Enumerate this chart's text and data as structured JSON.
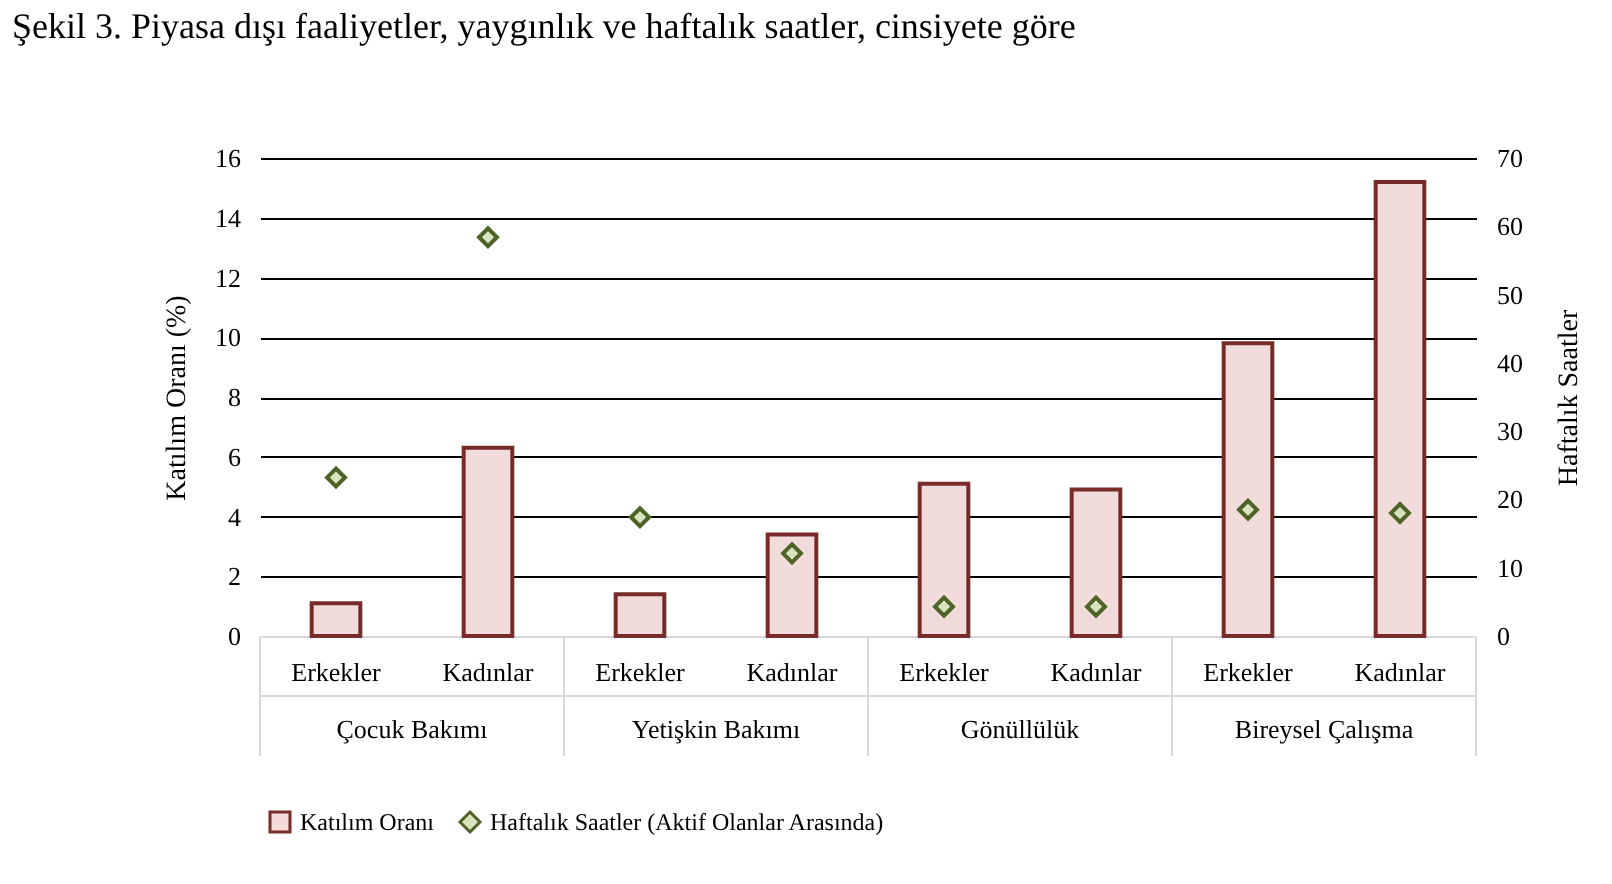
{
  "chart_data": {
    "type": "bar",
    "title": "Şekil 3. Piyasa dışı faaliyetler, yaygınlık ve haftalık saatler, cinsiyete göre",
    "categories": [
      "Erkekler",
      "Kadınlar",
      "Erkekler",
      "Kadınlar",
      "Erkekler",
      "Kadınlar",
      "Erkekler",
      "Kadınlar"
    ],
    "annotations": [
      "Çocuk Bakımı",
      "Yetişkin Bakımı",
      "Gönüllülük",
      "Bireysel Çalışma"
    ],
    "series": [
      {
        "name": "Katılım Oranı",
        "color": "#f2dcdb",
        "values": [
          1.1,
          6.3,
          1.4,
          3.4,
          5.1,
          4.9,
          9.8,
          15.2
        ]
      },
      {
        "name": "Haftalık Saatler (Aktif Olanlar Arasında)",
        "type": "scatter",
        "axis": "y2",
        "marker": "diamond",
        "color": "#d7e4bd",
        "values": [
          23.2,
          58.4,
          17.4,
          12.1,
          4.3,
          4.3,
          18.5,
          18.0
        ]
      }
    ],
    "ylabel": "Katılım Oranı (%)",
    "y2label": "Haftalık Saatler",
    "ylim": [
      0,
      16
    ],
    "yticks": [
      0,
      2,
      4,
      6,
      8,
      10,
      12,
      14,
      16
    ],
    "y2lim": [
      0,
      70
    ],
    "y2ticks": [
      0,
      10,
      20,
      30,
      40,
      50,
      60,
      70
    ],
    "grid": "y",
    "legend": "bottom"
  }
}
